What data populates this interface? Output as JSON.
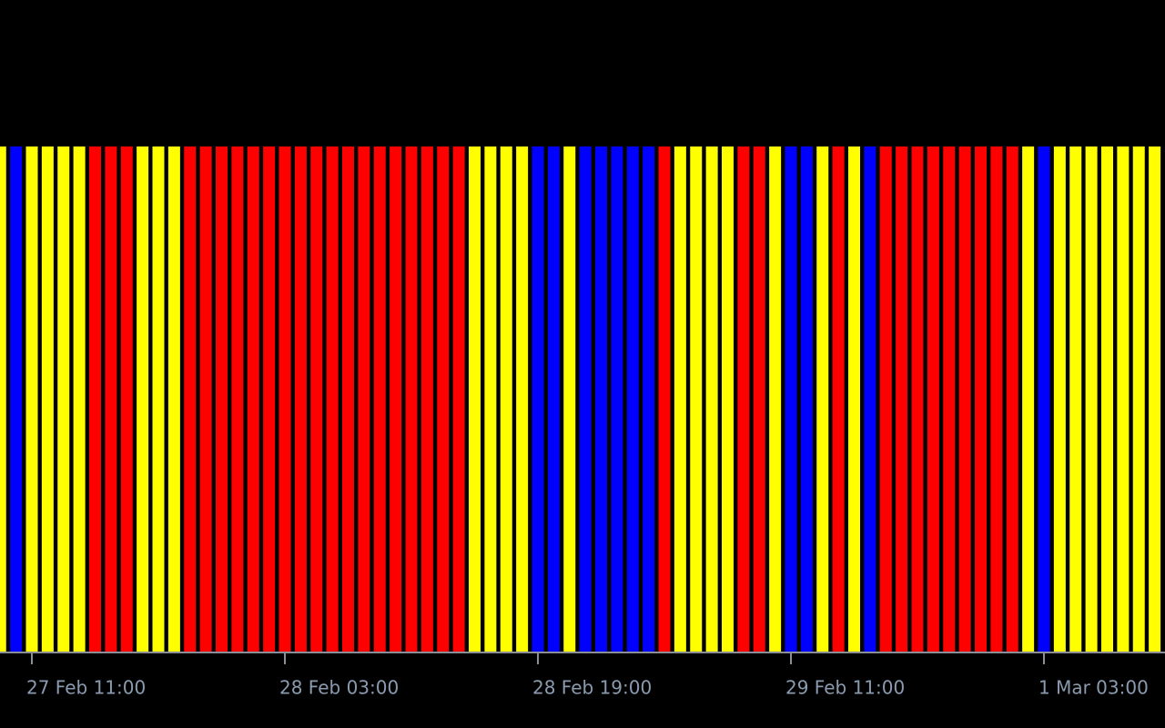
{
  "chart_data": {
    "type": "bar",
    "categories": [
      null,
      null,
      "27 Feb 11:00",
      null,
      null,
      null,
      null,
      null,
      null,
      null,
      null,
      null,
      null,
      null,
      null,
      null,
      null,
      null,
      "28 Feb 03:00",
      null,
      null,
      null,
      null,
      null,
      null,
      null,
      null,
      null,
      null,
      null,
      null,
      null,
      null,
      null,
      "28 Feb 19:00",
      null,
      null,
      null,
      null,
      null,
      null,
      null,
      null,
      null,
      null,
      null,
      null,
      null,
      null,
      null,
      "29 Feb 11:00",
      null,
      null,
      null,
      null,
      null,
      null,
      null,
      null,
      null,
      null,
      null,
      null,
      null,
      null,
      null,
      "1 Mar 03:00",
      null,
      null,
      null,
      null,
      null,
      null,
      null
    ],
    "values": [
      1,
      1,
      1,
      1,
      1,
      1,
      1,
      1,
      1,
      1,
      1,
      1,
      1,
      1,
      1,
      1,
      1,
      1,
      1,
      1,
      1,
      1,
      1,
      1,
      1,
      1,
      1,
      1,
      1,
      1,
      1,
      1,
      1,
      1,
      1,
      1,
      1,
      1,
      1,
      1,
      1,
      1,
      1,
      1,
      1,
      1,
      1,
      1,
      1,
      1,
      1,
      1,
      1,
      1,
      1,
      1,
      1,
      1,
      1,
      1,
      1,
      1,
      1,
      1,
      1,
      1,
      1,
      1,
      1,
      1,
      1,
      1,
      1,
      1
    ],
    "colors": [
      "#ffff00",
      "#0000ff",
      "#ffff00",
      "#ffff00",
      "#ffff00",
      "#ffff00",
      "#ff0000",
      "#ff0000",
      "#ff0000",
      "#ffff00",
      "#ffff00",
      "#ffff00",
      "#ff0000",
      "#ff0000",
      "#ff0000",
      "#ff0000",
      "#ff0000",
      "#ff0000",
      "#ff0000",
      "#ff0000",
      "#ff0000",
      "#ff0000",
      "#ff0000",
      "#ff0000",
      "#ff0000",
      "#ff0000",
      "#ff0000",
      "#ff0000",
      "#ff0000",
      "#ff0000",
      "#ffff00",
      "#ffff00",
      "#ffff00",
      "#ffff00",
      "#0000ff",
      "#0000ff",
      "#ffff00",
      "#0000ff",
      "#0000ff",
      "#0000ff",
      "#0000ff",
      "#0000ff",
      "#ff0000",
      "#ffff00",
      "#ffff00",
      "#ffff00",
      "#ffff00",
      "#ff0000",
      "#ff0000",
      "#ffff00",
      "#0000ff",
      "#0000ff",
      "#ffff00",
      "#ff0000",
      "#ffff00",
      "#0000ff",
      "#ff0000",
      "#ff0000",
      "#ff0000",
      "#ff0000",
      "#ff0000",
      "#ff0000",
      "#ff0000",
      "#ff0000",
      "#ff0000",
      "#ffff00",
      "#0000ff",
      "#ffff00",
      "#ffff00",
      "#ffff00",
      "#ffff00",
      "#ffff00",
      "#ffff00",
      "#ffff00"
    ],
    "ylim": [
      0,
      1.29
    ]
  }
}
